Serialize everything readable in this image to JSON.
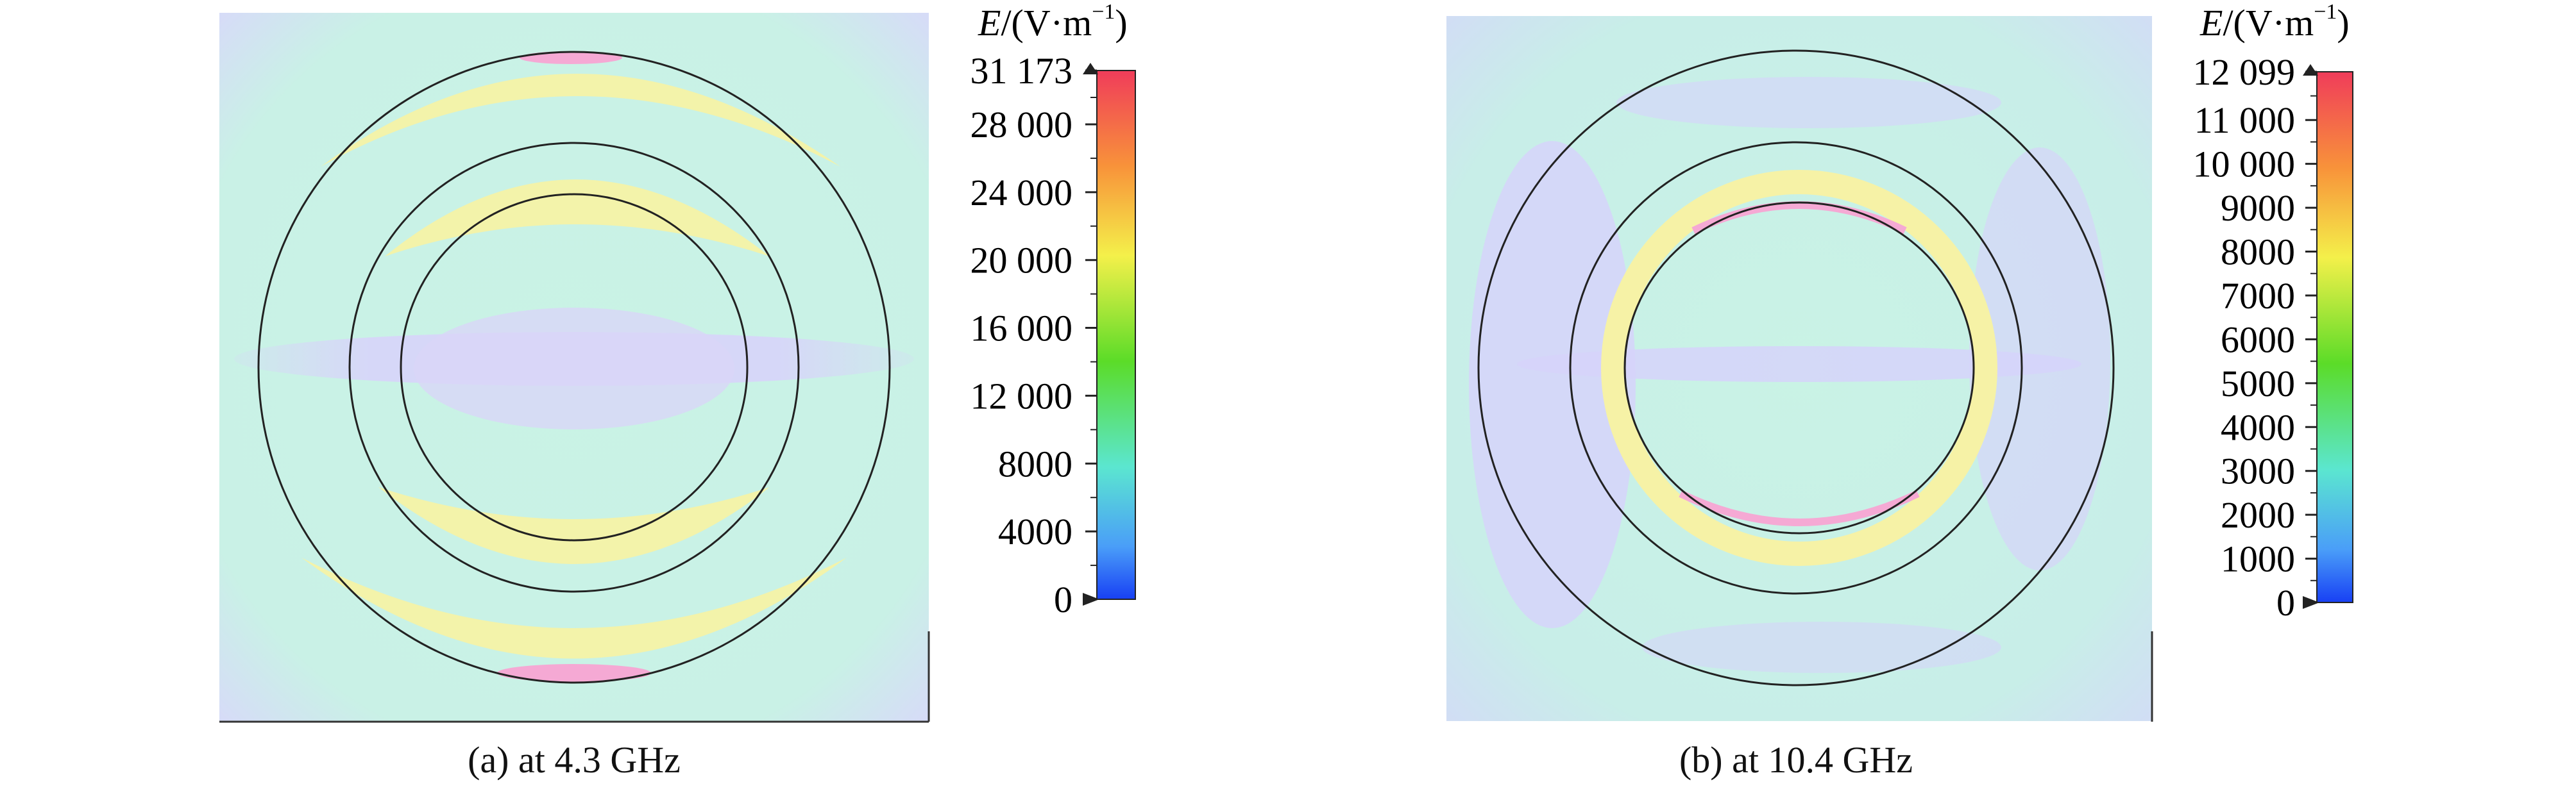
{
  "figures": [
    {
      "id": "a",
      "caption": "(a) at 4.3 GHz",
      "colorbar": {
        "unit_prefix": "E",
        "unit_suffix": "/(V·m",
        "unit_exp": "−1",
        "unit_close": ")",
        "ticks": [
          "31 173",
          "28 000",
          "24 000",
          "20 000",
          "16 000",
          "12 000",
          "8000",
          "4000",
          "0"
        ],
        "tick_values": [
          31173,
          28000,
          24000,
          20000,
          16000,
          12000,
          8000,
          4000,
          0
        ],
        "max": 31173
      }
    },
    {
      "id": "b",
      "caption": "(b) at 10.4 GHz",
      "colorbar": {
        "unit_prefix": "E",
        "unit_suffix": "/(V·m",
        "unit_exp": "−1",
        "unit_close": ")",
        "ticks": [
          "12 099",
          "11 000",
          "10 000",
          "9000",
          "8000",
          "7000",
          "6000",
          "5000",
          "4000",
          "3000",
          "2000",
          "1000",
          "0"
        ],
        "tick_values": [
          12099,
          11000,
          10000,
          9000,
          8000,
          7000,
          6000,
          5000,
          4000,
          3000,
          2000,
          1000,
          0
        ],
        "max": 12099
      }
    }
  ],
  "colors": {
    "background_field": "#c8f3e6",
    "low_field": "#d9d6f8",
    "high_field": "#f6f3a8",
    "peak_field": "#f5a9d4",
    "ring_line": "#222222"
  }
}
